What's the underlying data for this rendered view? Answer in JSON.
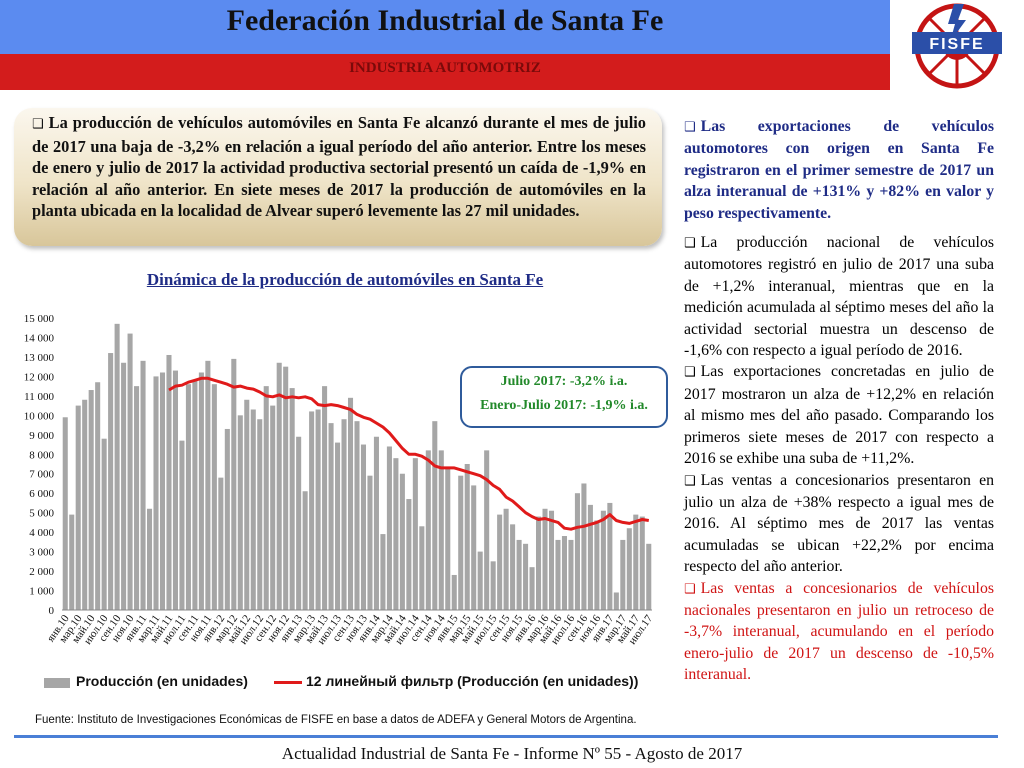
{
  "header": {
    "title": "Federación Industrial de Santa Fe",
    "subtitle": "INDUSTRIA AUTOMOTRIZ",
    "logo_text": "FISFE"
  },
  "summary": {
    "text": "La producción de vehículos automóviles en Santa Fe alcanzó durante el mes de julio de 2017 una baja de -3,2% en relación a igual período del año anterior. Entre los meses de enero y julio de 2017 la actividad productiva sectorial presentó un caída de -1,9% en relación al año anterior. En siete meses de 2017 la producción de automóviles en la planta ubicada en la localidad de Alvear superó levemente las 27 mil unidades."
  },
  "callout": {
    "line1": "Julio 2017: -3,2% i.a.",
    "line2": "Enero-Julio 2017: -1,9% i.a."
  },
  "legend": {
    "bar_label": "Producción (en unidades)",
    "line_label": "12 линейный фильтр (Producción (en unidades))"
  },
  "source": "Fuente: Instituto de Investigaciones Económicas de FISFE en base a datos de ADEFA y General Motors de Argentina.",
  "right_column": [
    {
      "text": "Las exportaciones de vehículos automotores con origen en Santa Fe registraron en el primer semestre de 2017 un alza interanual de +131% y +82% en valor y peso respectivamente.",
      "style": "bold-blue"
    },
    {
      "text": "La producción nacional de vehículos automotores registró en julio de 2017 una suba de +1,2% interanual, mientras que en la medición acumulada al séptimo meses del año la actividad sectorial muestra un descenso de -1,6% con respecto a igual período de 2016.",
      "style": "black"
    },
    {
      "text": "Las exportaciones concretadas en julio de 2017 mostraron un alza de +12,2% en relación al mismo mes del año pasado. Comparando los primeros siete meses de 2017 con respecto a 2016 se exhibe una suba de +11,2%.",
      "style": "black"
    },
    {
      "text": "Las ventas a concesionarios presentaron en julio un alza de +38% respecto a igual mes de 2016. Al séptimo mes de 2017 las ventas acumuladas se ubican +22,2% por encima respecto del año anterior.",
      "style": "black"
    },
    {
      "text": "Las ventas a concesionarios de vehículos nacionales presentaron en julio un retroceso de -3,7% interanual, acumulando en el período enero-julio de 2017 un descenso de -10,5% interanual.",
      "style": "red"
    }
  ],
  "footer": "Actualidad Industrial de Santa Fe - Informe Nº 55 - Agosto de 2017",
  "colors": {
    "bar": "#a6a6a6",
    "line": "#e01a1a",
    "accent_blue": "#5b8bf0",
    "accent_red": "#d31c1c"
  },
  "chart_data": {
    "type": "bar",
    "title": "Dinámica de la producción de automóviles en Santa Fe",
    "ylim": [
      0,
      15000
    ],
    "yticks": [
      "0",
      "1 000",
      "2 000",
      "3 000",
      "4 000",
      "5 000",
      "6 000",
      "7 000",
      "8 000",
      "9 000",
      "10 000",
      "11 000",
      "12 000",
      "13 000",
      "14 000",
      "15 000"
    ],
    "tick_labels": [
      "янв.10",
      "мар.10",
      "май.10",
      "июл.10",
      "сен.10",
      "ноя.10",
      "янв.11",
      "мар.11",
      "май.11",
      "июл.11",
      "сен.11",
      "ноя.11",
      "янв.12",
      "мар.12",
      "май.12",
      "июл.12",
      "сен.12",
      "ноя.12",
      "янв.13",
      "мар.13",
      "май.13",
      "июл.13",
      "сен.13",
      "ноя.13",
      "янв.14",
      "мар.14",
      "май.14",
      "июл.14",
      "сен.14",
      "ноя.14",
      "янв.15",
      "мар.15",
      "май.15",
      "июл.15",
      "сен.15",
      "ноя.15",
      "янв.16",
      "мар.16",
      "май.16",
      "июл.16",
      "сен.16",
      "ноя.16",
      "янв.17",
      "мар.17",
      "май.17",
      "июл.17"
    ],
    "series": [
      {
        "name": "Producción (en unidades)",
        "type": "bar",
        "values": [
          9900,
          4900,
          10500,
          10800,
          11300,
          11700,
          8800,
          13200,
          14700,
          12700,
          14200,
          11500,
          12800,
          5200,
          12000,
          12200,
          13100,
          12300,
          8700,
          11600,
          11800,
          12200,
          12800,
          11600,
          6800,
          9300,
          12900,
          10000,
          10800,
          10300,
          9800,
          11500,
          10500,
          12700,
          12500,
          11400,
          8900,
          6100,
          10200,
          10300,
          11500,
          9600,
          8600,
          9800,
          10900,
          9700,
          8500,
          6900,
          8900,
          3900,
          8400,
          7800,
          7000,
          5700,
          7800,
          4300,
          8200,
          9700,
          8200,
          7300,
          1800,
          6900,
          7500,
          6400,
          3000,
          8200,
          2500,
          4900,
          5200,
          4400,
          3600,
          3400,
          2200,
          4800,
          5200,
          5100,
          3600,
          3800,
          3600,
          6000,
          6500,
          5400,
          4600,
          5100,
          5500,
          900,
          3600,
          4200,
          4900,
          4800,
          3400
        ]
      },
      {
        "name": "12 линейный фильтр (Producción (en unidades))",
        "type": "line",
        "values": [
          11300,
          11500,
          11550,
          11700,
          11800,
          11900,
          11900,
          11800,
          11700,
          11600,
          11450,
          11500,
          11400,
          11350,
          11200,
          11000,
          10950,
          11050,
          10900,
          10950,
          10900,
          10950,
          10850,
          10550,
          10500,
          10550,
          10500,
          10400,
          10300,
          10050,
          9900,
          9800,
          9600,
          9400,
          9100,
          8700,
          8300,
          8000,
          8000,
          7900,
          7700,
          7400,
          7300,
          7300,
          7300,
          7200,
          7100,
          7000,
          6900,
          6700,
          6400,
          6200,
          5800,
          5600,
          5300,
          5000,
          4800,
          4650,
          4700,
          4600,
          4500,
          4200,
          4150,
          4250,
          4300,
          4400,
          4500,
          4650,
          4900,
          4600,
          4500,
          4450,
          4550,
          4650,
          4600
        ]
      }
    ]
  }
}
